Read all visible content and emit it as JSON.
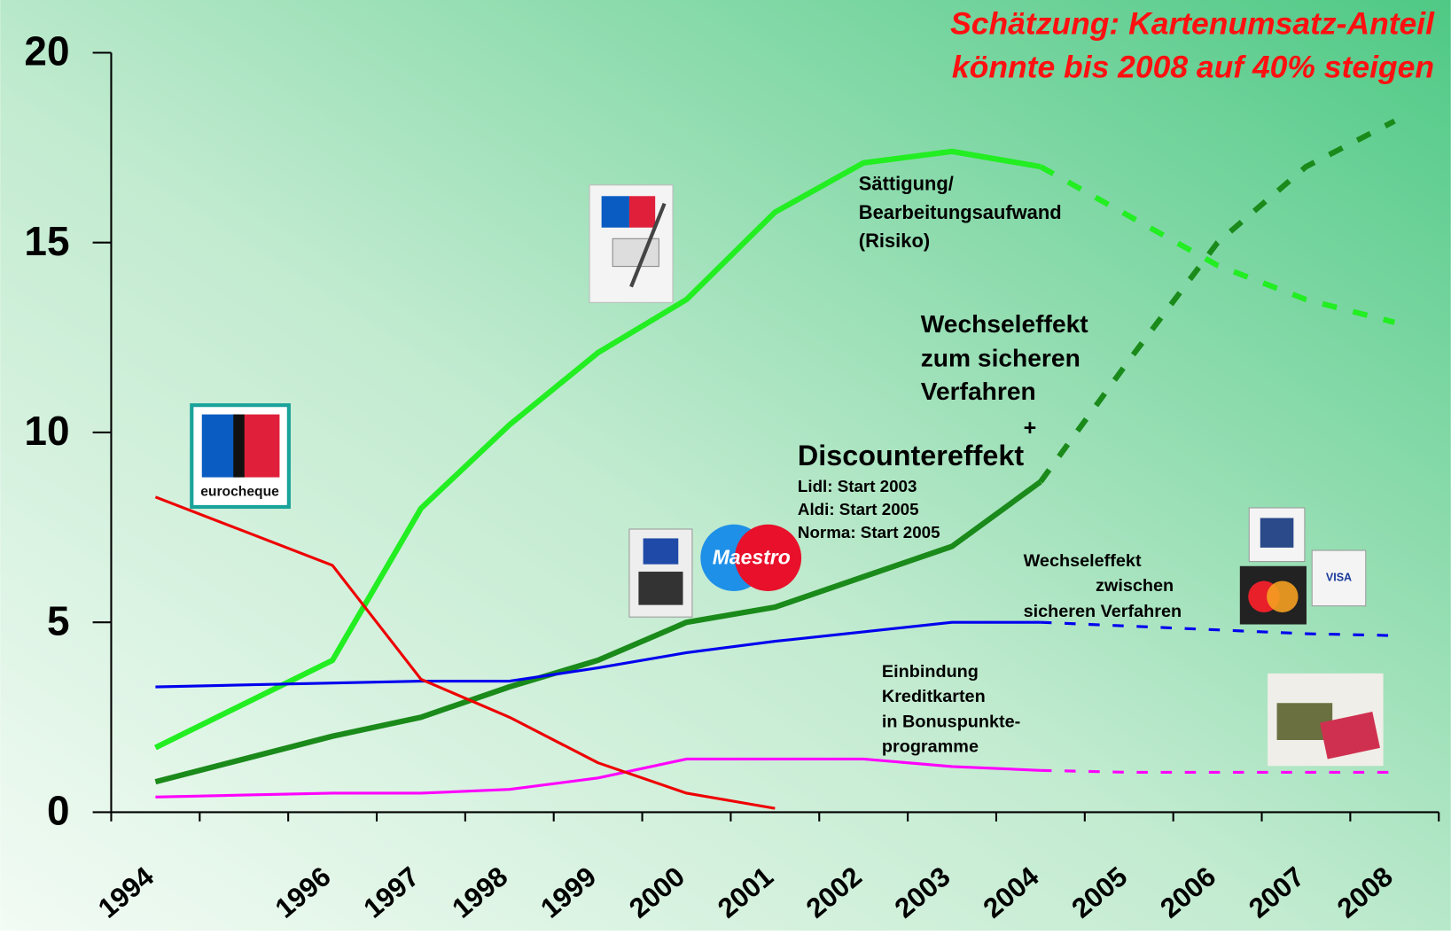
{
  "chart_data": {
    "type": "line",
    "title": [
      "Schätzung: Kartenumsatz-Anteil",
      "könnte bis 2008 auf 40% steigen"
    ],
    "categories": [
      "1994",
      null,
      "1996",
      "1997",
      "1998",
      "1999",
      "2000",
      "2001",
      "2002",
      "2003",
      "2004",
      "2005",
      "2006",
      "2007",
      "2008"
    ],
    "ylim": [
      0,
      20
    ],
    "yticks": [
      0,
      5,
      10,
      15,
      20
    ],
    "series": [
      {
        "color": "#22ee22",
        "style": "solid",
        "values": [
          1.7,
          2.85,
          4.0,
          8.0,
          10.2,
          12.1,
          13.5,
          15.8,
          17.1,
          17.4,
          17.0,
          null,
          null,
          null,
          null
        ]
      },
      {
        "color": "#22ee22",
        "style": "dashed",
        "values": [
          null,
          null,
          null,
          null,
          null,
          null,
          null,
          null,
          null,
          null,
          17.0,
          15.7,
          14.4,
          13.5,
          12.9
        ]
      },
      {
        "color": "#1a8a1a",
        "style": "solid",
        "values": [
          0.8,
          1.4,
          2.0,
          2.5,
          3.3,
          4.0,
          5.0,
          5.4,
          6.2,
          7.0,
          8.7,
          null,
          null,
          null,
          null
        ]
      },
      {
        "color": "#1a8a1a",
        "style": "dashed",
        "values": [
          null,
          null,
          null,
          null,
          null,
          null,
          null,
          null,
          null,
          null,
          8.7,
          11.9,
          15.0,
          17.0,
          18.2
        ]
      },
      {
        "color": "#0000ee",
        "style": "solid",
        "values": [
          3.3,
          3.35,
          3.4,
          3.45,
          3.45,
          3.8,
          4.2,
          4.5,
          4.75,
          5.0,
          5.0,
          null,
          null,
          null,
          null
        ]
      },
      {
        "color": "#0000ee",
        "style": "dashed",
        "values": [
          null,
          null,
          null,
          null,
          null,
          null,
          null,
          null,
          null,
          null,
          5.0,
          4.9,
          4.8,
          4.7,
          4.65
        ]
      },
      {
        "color": "#ff00ff",
        "style": "solid",
        "values": [
          0.4,
          0.45,
          0.5,
          0.5,
          0.6,
          0.9,
          1.4,
          1.4,
          1.4,
          1.2,
          1.1,
          null,
          null,
          null,
          null
        ]
      },
      {
        "color": "#ff00ff",
        "style": "dashed",
        "values": [
          null,
          null,
          null,
          null,
          null,
          null,
          null,
          null,
          null,
          null,
          1.1,
          1.05,
          1.05,
          1.05,
          1.05
        ]
      },
      {
        "color": "#ee0000",
        "style": "solid",
        "values": [
          8.3,
          7.4,
          6.5,
          3.5,
          2.5,
          1.3,
          0.5,
          0.1,
          null,
          null,
          null,
          null,
          null,
          null,
          null
        ]
      }
    ],
    "annotations": [
      [
        "Sättigung/",
        "Bearbeitungsaufwand",
        "(Risiko)"
      ],
      [
        "Wechseleffekt",
        "zum sicheren",
        "Verfahren"
      ],
      [
        "+"
      ],
      [
        "Discountereffekt"
      ],
      [
        "Lidl: Start 2003",
        "Aldi: Start 2005",
        "Norma: Start 2005"
      ],
      [
        "Wechseleffekt",
        "zwischen",
        "sicheren Verfahren"
      ],
      [
        "Einbindung",
        "Kreditkarten",
        "in Bonuspunkte-",
        "programme"
      ]
    ]
  },
  "logos": {
    "eurocheque": "eurocheque",
    "maestro": "Maestro",
    "visa": "VISA"
  }
}
